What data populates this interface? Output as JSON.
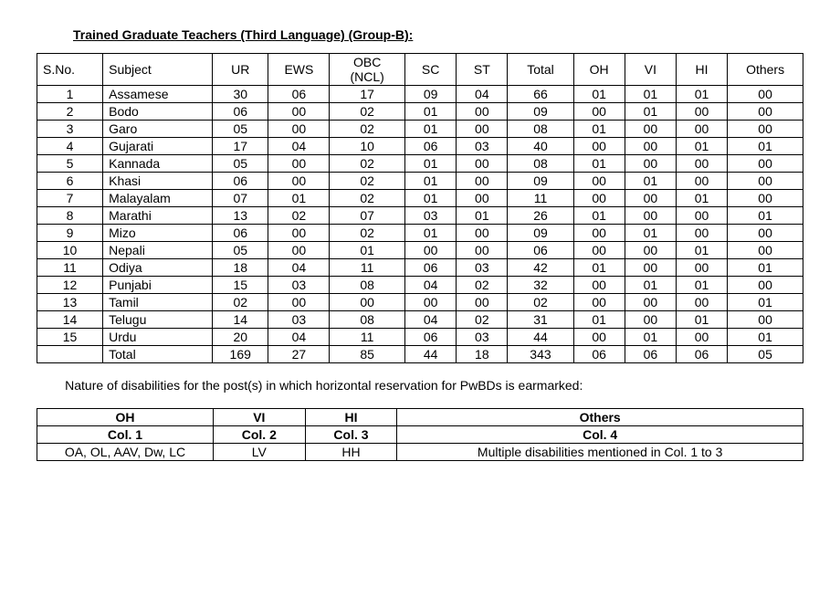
{
  "title": "Trained Graduate Teachers (Third Language) (Group-B):",
  "mainTable": {
    "headers": {
      "sno": "S.No.",
      "subject": "Subject",
      "ur": "UR",
      "ews": "EWS",
      "obc": "OBC (NCL)",
      "sc": "SC",
      "st": "ST",
      "total": "Total",
      "oh": "OH",
      "vi": "VI",
      "hi": "HI",
      "others": "Others"
    },
    "rows": [
      {
        "sno": "1",
        "subject": "Assamese",
        "ur": "30",
        "ews": "06",
        "obc": "17",
        "sc": "09",
        "st": "04",
        "total": "66",
        "oh": "01",
        "vi": "01",
        "hi": "01",
        "others": "00"
      },
      {
        "sno": "2",
        "subject": "Bodo",
        "ur": "06",
        "ews": "00",
        "obc": "02",
        "sc": "01",
        "st": "00",
        "total": "09",
        "oh": "00",
        "vi": "01",
        "hi": "00",
        "others": "00"
      },
      {
        "sno": "3",
        "subject": "Garo",
        "ur": "05",
        "ews": "00",
        "obc": "02",
        "sc": "01",
        "st": "00",
        "total": "08",
        "oh": "01",
        "vi": "00",
        "hi": "00",
        "others": "00"
      },
      {
        "sno": "4",
        "subject": "Gujarati",
        "ur": "17",
        "ews": "04",
        "obc": "10",
        "sc": "06",
        "st": "03",
        "total": "40",
        "oh": "00",
        "vi": "00",
        "hi": "01",
        "others": "01"
      },
      {
        "sno": "5",
        "subject": "Kannada",
        "ur": "05",
        "ews": "00",
        "obc": "02",
        "sc": "01",
        "st": "00",
        "total": "08",
        "oh": "01",
        "vi": "00",
        "hi": "00",
        "others": "00"
      },
      {
        "sno": "6",
        "subject": "Khasi",
        "ur": "06",
        "ews": "00",
        "obc": "02",
        "sc": "01",
        "st": "00",
        "total": "09",
        "oh": "00",
        "vi": "01",
        "hi": "00",
        "others": "00"
      },
      {
        "sno": "7",
        "subject": "Malayalam",
        "ur": "07",
        "ews": "01",
        "obc": "02",
        "sc": "01",
        "st": "00",
        "total": "11",
        "oh": "00",
        "vi": "00",
        "hi": "01",
        "others": "00"
      },
      {
        "sno": "8",
        "subject": "Marathi",
        "ur": "13",
        "ews": "02",
        "obc": "07",
        "sc": "03",
        "st": "01",
        "total": "26",
        "oh": "01",
        "vi": "00",
        "hi": "00",
        "others": "01"
      },
      {
        "sno": "9",
        "subject": "Mizo",
        "ur": "06",
        "ews": "00",
        "obc": "02",
        "sc": "01",
        "st": "00",
        "total": "09",
        "oh": "00",
        "vi": "01",
        "hi": "00",
        "others": "00"
      },
      {
        "sno": "10",
        "subject": "Nepali",
        "ur": "05",
        "ews": "00",
        "obc": "01",
        "sc": "00",
        "st": "00",
        "total": "06",
        "oh": "00",
        "vi": "00",
        "hi": "01",
        "others": "00"
      },
      {
        "sno": "11",
        "subject": "Odiya",
        "ur": "18",
        "ews": "04",
        "obc": "11",
        "sc": "06",
        "st": "03",
        "total": "42",
        "oh": "01",
        "vi": "00",
        "hi": "00",
        "others": "01"
      },
      {
        "sno": "12",
        "subject": "Punjabi",
        "ur": "15",
        "ews": "03",
        "obc": "08",
        "sc": "04",
        "st": "02",
        "total": "32",
        "oh": "00",
        "vi": "01",
        "hi": "01",
        "others": "00"
      },
      {
        "sno": "13",
        "subject": "Tamil",
        "ur": "02",
        "ews": "00",
        "obc": "00",
        "sc": "00",
        "st": "00",
        "total": "02",
        "oh": "00",
        "vi": "00",
        "hi": "00",
        "others": "01"
      },
      {
        "sno": "14",
        "subject": "Telugu",
        "ur": "14",
        "ews": "03",
        "obc": "08",
        "sc": "04",
        "st": "02",
        "total": "31",
        "oh": "01",
        "vi": "00",
        "hi": "01",
        "others": "00"
      },
      {
        "sno": "15",
        "subject": "Urdu",
        "ur": "20",
        "ews": "04",
        "obc": "11",
        "sc": "06",
        "st": "03",
        "total": "44",
        "oh": "00",
        "vi": "01",
        "hi": "00",
        "others": "01"
      }
    ],
    "totalRow": {
      "sno": "",
      "subject": "Total",
      "ur": "169",
      "ews": "27",
      "obc": "85",
      "sc": "44",
      "st": "18",
      "total": "343",
      "oh": "06",
      "vi": "06",
      "hi": "06",
      "others": "05"
    }
  },
  "paragraph": "Nature of disabilities for the post(s) in which horizontal reservation for PwBDs is earmarked:",
  "disabTable": {
    "r1": {
      "c1": "OH",
      "c2": "VI",
      "c3": "HI",
      "c4": "Others"
    },
    "r2": {
      "c1": "Col. 1",
      "c2": "Col. 2",
      "c3": "Col. 3",
      "c4": "Col. 4"
    },
    "r3": {
      "c1": "OA, OL, AAV, Dw, LC",
      "c2": "LV",
      "c3": "HH",
      "c4": "Multiple disabilities mentioned in Col. 1 to 3"
    }
  }
}
